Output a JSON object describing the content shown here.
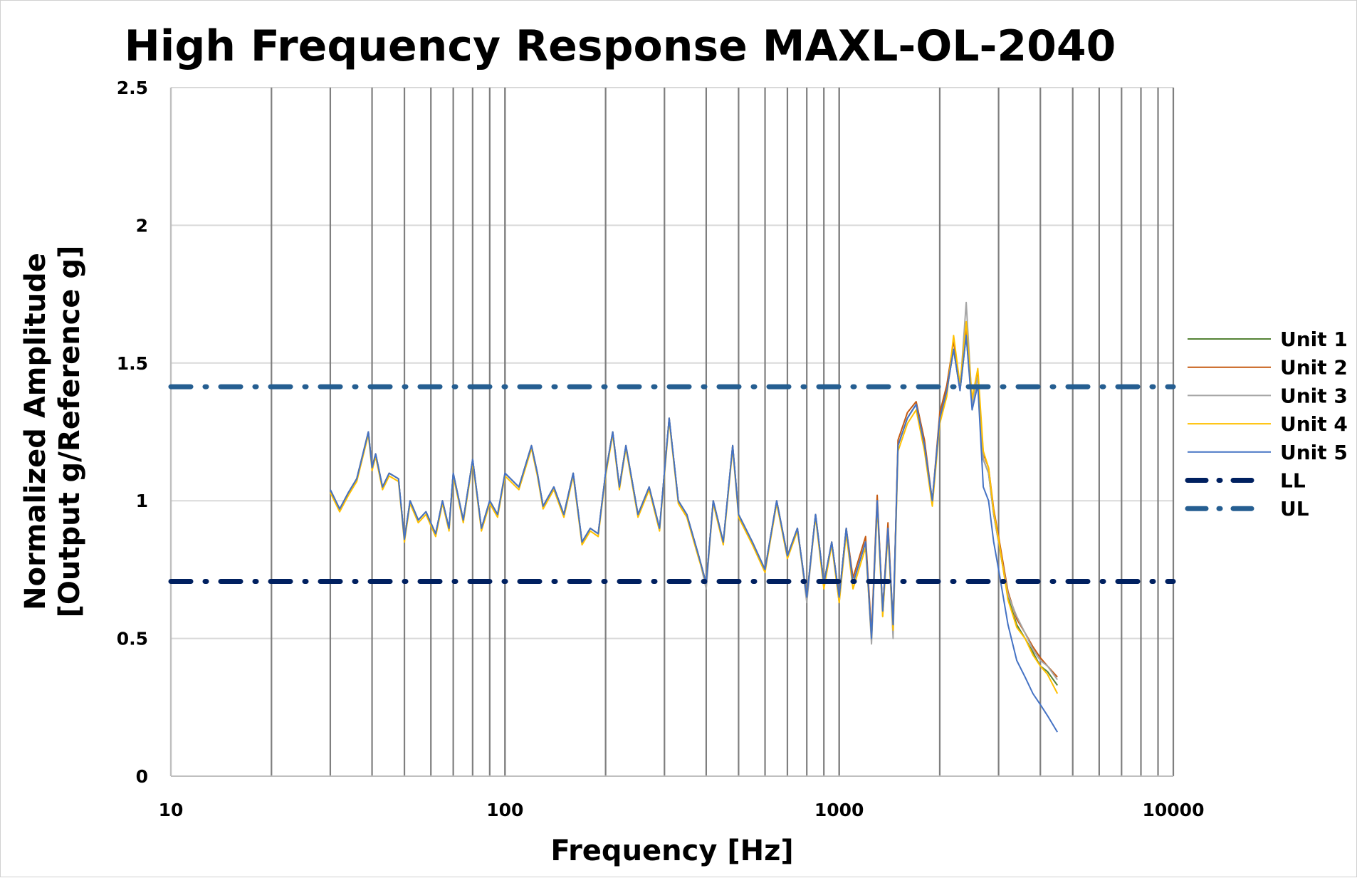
{
  "chart_data": {
    "type": "line",
    "title": "High Frequency Response MAXL-OL-2040",
    "xlabel": "Frequency [Hz]",
    "ylabel_line1": "Normalized Amplitude",
    "ylabel_line2": "[Output g/Reference g]",
    "x_scale": "log",
    "xlim": [
      10,
      10000
    ],
    "ylim": [
      0,
      2.5
    ],
    "x_ticks": [
      "10",
      "100",
      "1000",
      "10000"
    ],
    "y_ticks": [
      "0",
      "0.5",
      "1",
      "1.5",
      "2",
      "2.5"
    ],
    "grid": {
      "x_major_minor": true,
      "y_major": true,
      "x_grid_color": "#7f7f7f",
      "y_grid_color": "#d9d9d9"
    },
    "legend_position": "right",
    "x": [
      30,
      32,
      34,
      36,
      39,
      40,
      41,
      43,
      45,
      48,
      50,
      52,
      55,
      58,
      62,
      65,
      68,
      70,
      75,
      80,
      85,
      90,
      95,
      100,
      110,
      120,
      125,
      130,
      140,
      150,
      160,
      170,
      180,
      190,
      200,
      210,
      220,
      230,
      250,
      270,
      290,
      310,
      330,
      350,
      380,
      400,
      420,
      450,
      480,
      500,
      550,
      600,
      650,
      700,
      750,
      800,
      850,
      900,
      950,
      1000,
      1050,
      1100,
      1200,
      1250,
      1300,
      1350,
      1400,
      1450,
      1500,
      1600,
      1700,
      1800,
      1900,
      2000,
      2100,
      2200,
      2300,
      2400,
      2500,
      2600,
      2700,
      2800,
      2900,
      3000,
      3200,
      3400,
      3600,
      3800,
      4000,
      4200,
      4500
    ],
    "series": [
      {
        "name": "Unit 1",
        "color": "#548235",
        "dash": "solid",
        "values": [
          1.04,
          0.97,
          1.03,
          1.08,
          1.25,
          1.12,
          1.17,
          1.05,
          1.1,
          1.08,
          0.86,
          1.0,
          0.93,
          0.96,
          0.88,
          1.0,
          0.9,
          1.1,
          0.93,
          1.15,
          0.9,
          1.0,
          0.95,
          1.1,
          1.05,
          1.2,
          1.1,
          0.98,
          1.05,
          0.95,
          1.1,
          0.85,
          0.9,
          0.88,
          1.1,
          1.25,
          1.05,
          1.2,
          0.95,
          1.05,
          0.9,
          1.3,
          1.0,
          0.95,
          0.8,
          0.7,
          1.0,
          0.85,
          1.2,
          0.95,
          0.85,
          0.75,
          1.0,
          0.8,
          0.9,
          0.65,
          0.95,
          0.7,
          0.85,
          0.65,
          0.9,
          0.7,
          0.85,
          0.5,
          1.0,
          0.6,
          0.9,
          0.55,
          1.2,
          1.3,
          1.35,
          1.2,
          1.0,
          1.3,
          1.4,
          1.55,
          1.4,
          1.6,
          1.35,
          1.45,
          1.15,
          1.1,
          0.95,
          0.85,
          0.65,
          0.55,
          0.5,
          0.45,
          0.4,
          0.38,
          0.33
        ]
      },
      {
        "name": "Unit 2",
        "color": "#c55a11",
        "dash": "solid",
        "values": [
          1.04,
          0.97,
          1.03,
          1.08,
          1.25,
          1.12,
          1.17,
          1.05,
          1.1,
          1.08,
          0.86,
          1.0,
          0.93,
          0.96,
          0.88,
          1.0,
          0.9,
          1.1,
          0.93,
          1.15,
          0.9,
          1.0,
          0.95,
          1.1,
          1.05,
          1.2,
          1.1,
          0.98,
          1.05,
          0.95,
          1.1,
          0.85,
          0.9,
          0.88,
          1.1,
          1.25,
          1.05,
          1.2,
          0.95,
          1.05,
          0.9,
          1.3,
          1.0,
          0.95,
          0.8,
          0.7,
          1.0,
          0.85,
          1.2,
          0.95,
          0.85,
          0.75,
          1.0,
          0.8,
          0.9,
          0.65,
          0.95,
          0.7,
          0.85,
          0.65,
          0.9,
          0.72,
          0.87,
          0.52,
          1.02,
          0.6,
          0.92,
          0.55,
          1.22,
          1.32,
          1.36,
          1.22,
          1.0,
          1.32,
          1.42,
          1.58,
          1.42,
          1.62,
          1.36,
          1.46,
          1.17,
          1.12,
          0.97,
          0.87,
          0.67,
          0.57,
          0.52,
          0.47,
          0.43,
          0.4,
          0.36
        ]
      },
      {
        "name": "Unit 3",
        "color": "#a5a5a5",
        "dash": "solid",
        "values": [
          1.04,
          0.97,
          1.03,
          1.08,
          1.25,
          1.12,
          1.17,
          1.05,
          1.1,
          1.08,
          0.86,
          1.0,
          0.93,
          0.96,
          0.88,
          1.0,
          0.9,
          1.1,
          0.93,
          1.15,
          0.9,
          1.0,
          0.95,
          1.1,
          1.05,
          1.2,
          1.1,
          0.98,
          1.05,
          0.95,
          1.1,
          0.85,
          0.9,
          0.88,
          1.1,
          1.25,
          1.05,
          1.2,
          0.95,
          1.05,
          0.9,
          1.3,
          1.0,
          0.95,
          0.8,
          0.68,
          1.0,
          0.85,
          1.2,
          0.95,
          0.85,
          0.75,
          1.0,
          0.8,
          0.9,
          0.63,
          0.95,
          0.7,
          0.85,
          0.63,
          0.9,
          0.7,
          0.85,
          0.48,
          1.0,
          0.58,
          0.9,
          0.5,
          1.2,
          1.3,
          1.35,
          1.2,
          1.0,
          1.3,
          1.4,
          1.55,
          1.4,
          1.72,
          1.35,
          1.45,
          1.15,
          1.1,
          0.95,
          0.85,
          0.66,
          0.58,
          0.52,
          0.46,
          0.42,
          0.4,
          0.35
        ]
      },
      {
        "name": "Unit 4",
        "color": "#ffc000",
        "dash": "solid",
        "values": [
          1.03,
          0.96,
          1.02,
          1.07,
          1.24,
          1.11,
          1.16,
          1.04,
          1.09,
          1.07,
          0.85,
          0.99,
          0.92,
          0.95,
          0.87,
          0.99,
          0.89,
          1.09,
          0.92,
          1.14,
          0.89,
          0.99,
          0.94,
          1.09,
          1.04,
          1.19,
          1.09,
          0.97,
          1.04,
          0.94,
          1.09,
          0.84,
          0.89,
          0.87,
          1.09,
          1.24,
          1.04,
          1.19,
          0.94,
          1.04,
          0.89,
          1.29,
          0.99,
          0.94,
          0.79,
          0.7,
          0.99,
          0.84,
          1.19,
          0.94,
          0.84,
          0.74,
          0.99,
          0.79,
          0.89,
          0.65,
          0.94,
          0.68,
          0.84,
          0.63,
          0.88,
          0.68,
          0.83,
          0.5,
          0.98,
          0.58,
          0.88,
          0.53,
          1.18,
          1.28,
          1.33,
          1.18,
          0.98,
          1.28,
          1.38,
          1.6,
          1.42,
          1.65,
          1.37,
          1.48,
          1.18,
          1.12,
          0.96,
          0.86,
          0.64,
          0.54,
          0.5,
          0.44,
          0.4,
          0.37,
          0.3
        ]
      },
      {
        "name": "Unit 5",
        "color": "#4472c4",
        "dash": "solid",
        "values": [
          1.04,
          0.97,
          1.03,
          1.08,
          1.25,
          1.12,
          1.17,
          1.05,
          1.1,
          1.08,
          0.86,
          1.0,
          0.93,
          0.96,
          0.88,
          1.0,
          0.9,
          1.1,
          0.93,
          1.15,
          0.9,
          1.0,
          0.95,
          1.1,
          1.05,
          1.2,
          1.1,
          0.98,
          1.05,
          0.95,
          1.1,
          0.85,
          0.9,
          0.88,
          1.1,
          1.25,
          1.05,
          1.2,
          0.95,
          1.05,
          0.9,
          1.3,
          1.0,
          0.95,
          0.8,
          0.7,
          1.0,
          0.85,
          1.2,
          0.95,
          0.85,
          0.75,
          1.0,
          0.8,
          0.9,
          0.65,
          0.95,
          0.7,
          0.85,
          0.65,
          0.9,
          0.7,
          0.85,
          0.5,
          1.0,
          0.6,
          0.9,
          0.55,
          1.2,
          1.3,
          1.35,
          1.2,
          1.0,
          1.3,
          1.4,
          1.55,
          1.4,
          1.6,
          1.33,
          1.42,
          1.05,
          1.0,
          0.85,
          0.75,
          0.55,
          0.42,
          0.36,
          0.3,
          0.26,
          0.22,
          0.16
        ]
      },
      {
        "name": "LL",
        "color": "#002060",
        "dash": "dash-dot",
        "constant": 0.707
      },
      {
        "name": "UL",
        "color": "#255e91",
        "dash": "dash-dot",
        "constant": 1.414
      }
    ]
  }
}
